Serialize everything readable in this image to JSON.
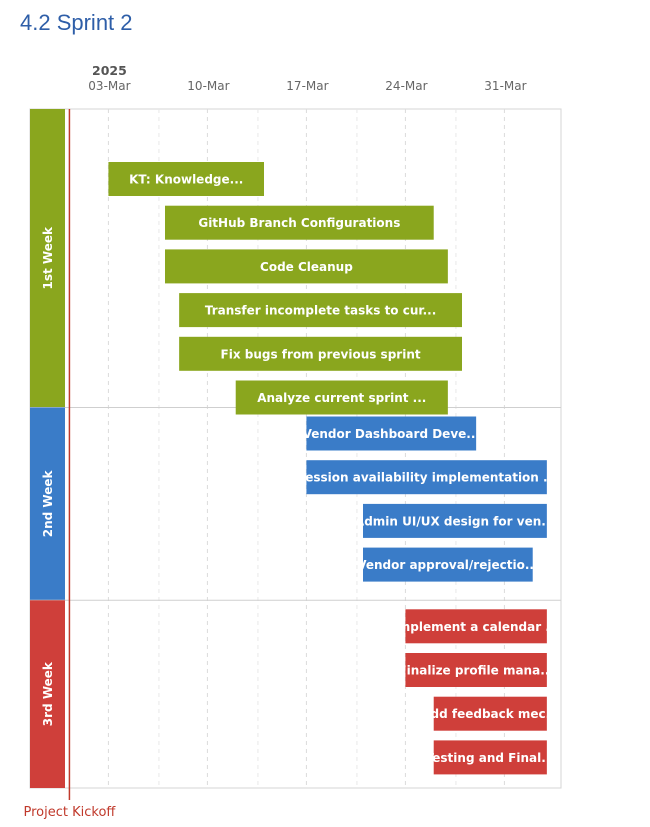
{
  "page": {
    "title": "4.2 Sprint 2"
  },
  "chart_data": {
    "type": "gantt",
    "year_label": "2025",
    "x_ticks": [
      "03-Mar",
      "10-Mar",
      "17-Mar",
      "24-Mar",
      "31-Mar"
    ],
    "x_range": [
      "2025-02-28",
      "2025-04-04"
    ],
    "marker": {
      "label": "Project Kickoff",
      "date": "2025-03-03",
      "color": "#c0392b"
    },
    "groups": [
      {
        "name": "1st Week",
        "color": "#8aa61e",
        "tasks": [
          {
            "label": "KT: Knowledge...",
            "start": "2025-03-03",
            "end": "2025-03-14"
          },
          {
            "label": "GitHub Branch Configurations",
            "start": "2025-03-07",
            "end": "2025-03-26"
          },
          {
            "label": "Code Cleanup",
            "start": "2025-03-07",
            "end": "2025-03-27"
          },
          {
            "label": "Transfer incomplete tasks to cur...",
            "start": "2025-03-08",
            "end": "2025-03-28"
          },
          {
            "label": "Fix bugs from previous sprint",
            "start": "2025-03-08",
            "end": "2025-03-28"
          },
          {
            "label": "Analyze current sprint ...",
            "start": "2025-03-12",
            "end": "2025-03-27"
          }
        ]
      },
      {
        "name": "2nd Week",
        "color": "#3a7cc8",
        "tasks": [
          {
            "label": "Vendor Dashboard Deve...",
            "start": "2025-03-17",
            "end": "2025-03-29"
          },
          {
            "label": "Session availability implementation ...",
            "start": "2025-03-17",
            "end": "2025-04-03"
          },
          {
            "label": "Admin UI/UX design for ven...",
            "start": "2025-03-21",
            "end": "2025-04-03"
          },
          {
            "label": "Vendor approval/rejectio...",
            "start": "2025-03-21",
            "end": "2025-04-02"
          }
        ]
      },
      {
        "name": "3rd Week",
        "color": "#cf3f3a",
        "tasks": [
          {
            "label": "Implement a calendar ...",
            "start": "2025-03-24",
            "end": "2025-04-03"
          },
          {
            "label": "Finalize profile mana...",
            "start": "2025-03-24",
            "end": "2025-04-03"
          },
          {
            "label": "Add feedback mec...",
            "start": "2025-03-26",
            "end": "2025-04-03"
          },
          {
            "label": "Testing and Final...",
            "start": "2025-03-26",
            "end": "2025-04-03"
          }
        ]
      }
    ]
  }
}
